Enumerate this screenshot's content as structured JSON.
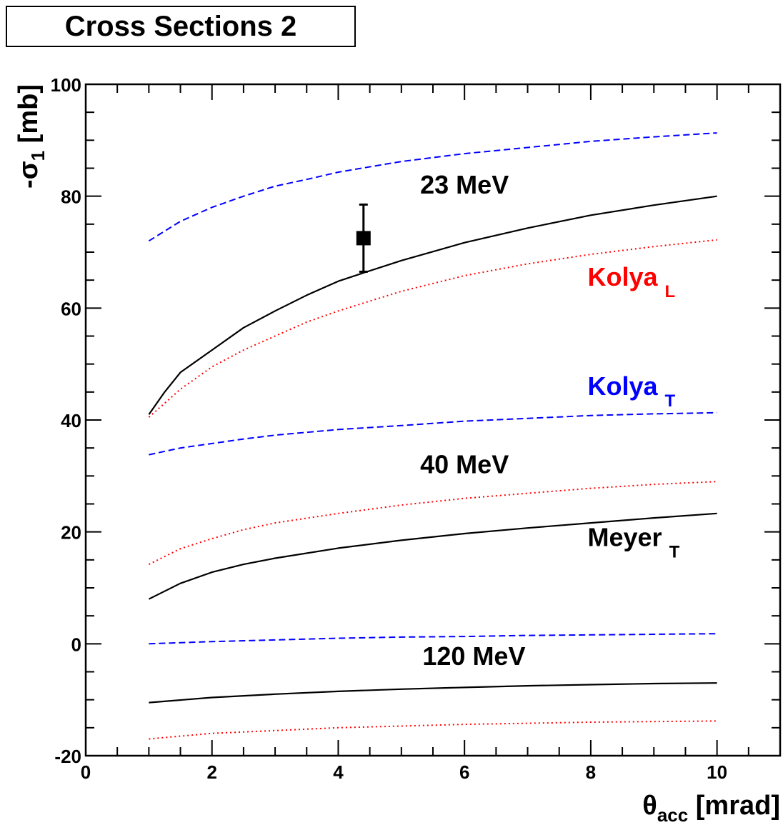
{
  "chart_data": {
    "type": "line",
    "title": "Cross Sections 2",
    "xlabel": {
      "main": "θ",
      "sub": "acc",
      "unit": " [mrad]"
    },
    "ylabel": {
      "main": "-σ",
      "sub": "1",
      "unit": " [mb]"
    },
    "xlim": [
      0,
      11
    ],
    "ylim": [
      -20,
      100
    ],
    "x_ticks": [
      0,
      2,
      4,
      6,
      8,
      10
    ],
    "x_tick_labels": [
      "0",
      "2",
      "4",
      "6",
      "8",
      "10"
    ],
    "y_ticks": [
      -20,
      0,
      20,
      40,
      60,
      80,
      100
    ],
    "y_tick_labels": [
      "-20",
      "0",
      "20",
      "40",
      "60",
      "80",
      "100"
    ],
    "grid": false,
    "colors": {
      "black": "#000000",
      "red": "#ff0000",
      "blue": "#0000ff"
    },
    "series": [
      {
        "group": "23 MeV",
        "style": "dashed",
        "color": "#0000ff",
        "x": [
          1.0,
          1.5,
          2.0,
          2.5,
          3.0,
          3.5,
          4.0,
          5.0,
          6.0,
          7.0,
          8.0,
          9.0,
          10.0
        ],
        "values": [
          72.0,
          75.5,
          78.0,
          80.0,
          81.8,
          83.0,
          84.3,
          86.2,
          87.6,
          88.7,
          89.8,
          90.6,
          91.3
        ]
      },
      {
        "group": "23 MeV",
        "style": "solid",
        "color": "#000000",
        "x": [
          1.0,
          1.25,
          1.5,
          2.0,
          2.5,
          3.0,
          3.5,
          4.0,
          4.4,
          5.0,
          6.0,
          7.0,
          8.0,
          9.0,
          10.0
        ],
        "values": [
          41.0,
          45.0,
          48.5,
          52.5,
          56.5,
          59.5,
          62.3,
          64.8,
          66.3,
          68.5,
          71.7,
          74.3,
          76.6,
          78.4,
          80.0
        ]
      },
      {
        "group": "23 MeV",
        "style": "dotted",
        "color": "#ff0000",
        "x": [
          1.0,
          1.25,
          1.5,
          2.0,
          2.5,
          3.0,
          3.5,
          4.0,
          5.0,
          6.0,
          7.0,
          8.0,
          9.0,
          10.0
        ],
        "values": [
          40.5,
          43.0,
          45.5,
          49.5,
          52.5,
          55.0,
          57.5,
          59.5,
          63.0,
          65.8,
          67.9,
          69.6,
          71.0,
          72.2
        ]
      },
      {
        "group": "40 MeV",
        "style": "dashed",
        "color": "#0000ff",
        "x": [
          1.0,
          1.5,
          2.0,
          2.5,
          3.0,
          4.0,
          5.0,
          6.0,
          7.0,
          8.0,
          9.0,
          10.0
        ],
        "values": [
          33.8,
          35.0,
          35.8,
          36.6,
          37.3,
          38.3,
          39.0,
          39.8,
          40.3,
          40.8,
          41.1,
          41.3
        ]
      },
      {
        "group": "40 MeV",
        "style": "dotted",
        "color": "#ff0000",
        "x": [
          1.0,
          1.5,
          2.0,
          2.5,
          3.0,
          4.0,
          5.0,
          6.0,
          7.0,
          8.0,
          9.0,
          10.0
        ],
        "values": [
          14.2,
          17.0,
          18.8,
          20.4,
          21.6,
          23.3,
          24.8,
          26.0,
          26.9,
          27.8,
          28.5,
          29.0
        ]
      },
      {
        "group": "40 MeV",
        "style": "solid",
        "color": "#000000",
        "x": [
          1.0,
          1.5,
          2.0,
          2.5,
          3.0,
          4.0,
          5.0,
          6.0,
          7.0,
          8.0,
          9.0,
          10.0
        ],
        "values": [
          8.0,
          10.8,
          12.8,
          14.2,
          15.3,
          17.1,
          18.5,
          19.7,
          20.7,
          21.6,
          22.5,
          23.3
        ]
      },
      {
        "group": "120 MeV",
        "style": "dashed",
        "color": "#0000ff",
        "x": [
          1.0,
          2.0,
          3.0,
          4.0,
          5.0,
          6.0,
          7.0,
          8.0,
          9.0,
          10.0
        ],
        "values": [
          0.0,
          0.4,
          0.7,
          1.0,
          1.2,
          1.3,
          1.5,
          1.6,
          1.7,
          1.8
        ]
      },
      {
        "group": "120 MeV",
        "style": "solid",
        "color": "#000000",
        "x": [
          1.0,
          2.0,
          3.0,
          4.0,
          5.0,
          6.0,
          7.0,
          8.0,
          9.0,
          10.0
        ],
        "values": [
          -10.5,
          -9.6,
          -9.0,
          -8.5,
          -8.1,
          -7.8,
          -7.5,
          -7.3,
          -7.1,
          -7.0
        ]
      },
      {
        "group": "120 MeV",
        "style": "dotted",
        "color": "#ff0000",
        "x": [
          1.0,
          2.0,
          3.0,
          4.0,
          5.0,
          6.0,
          7.0,
          8.0,
          9.0,
          10.0
        ],
        "values": [
          -17.0,
          -16.0,
          -15.5,
          -15.0,
          -14.7,
          -14.4,
          -14.2,
          -14.0,
          -13.9,
          -13.8
        ]
      }
    ],
    "data_point": {
      "x": 4.4,
      "y": 72.5,
      "y_low": 66.5,
      "y_high": 78.5,
      "color": "#000000"
    },
    "annotations": [
      {
        "text": "23 MeV",
        "x": 6.0,
        "y": 80.5,
        "color": "#000000"
      },
      {
        "text": "40 MeV",
        "x": 6.0,
        "y": 30.5,
        "color": "#000000"
      },
      {
        "text": "120 MeV",
        "x": 6.15,
        "y": -3.8,
        "color": "#000000"
      }
    ],
    "labels": [
      {
        "text": "Kolya",
        "sub": "L",
        "x": 7.95,
        "y": 64.0,
        "color": "#ff0000"
      },
      {
        "text": "Kolya",
        "sub": "T",
        "x": 7.95,
        "y": 44.5,
        "color": "#0000ff"
      },
      {
        "text": "Meyer",
        "sub": "T",
        "x": 7.95,
        "y": 17.5,
        "color": "#000000"
      }
    ]
  }
}
